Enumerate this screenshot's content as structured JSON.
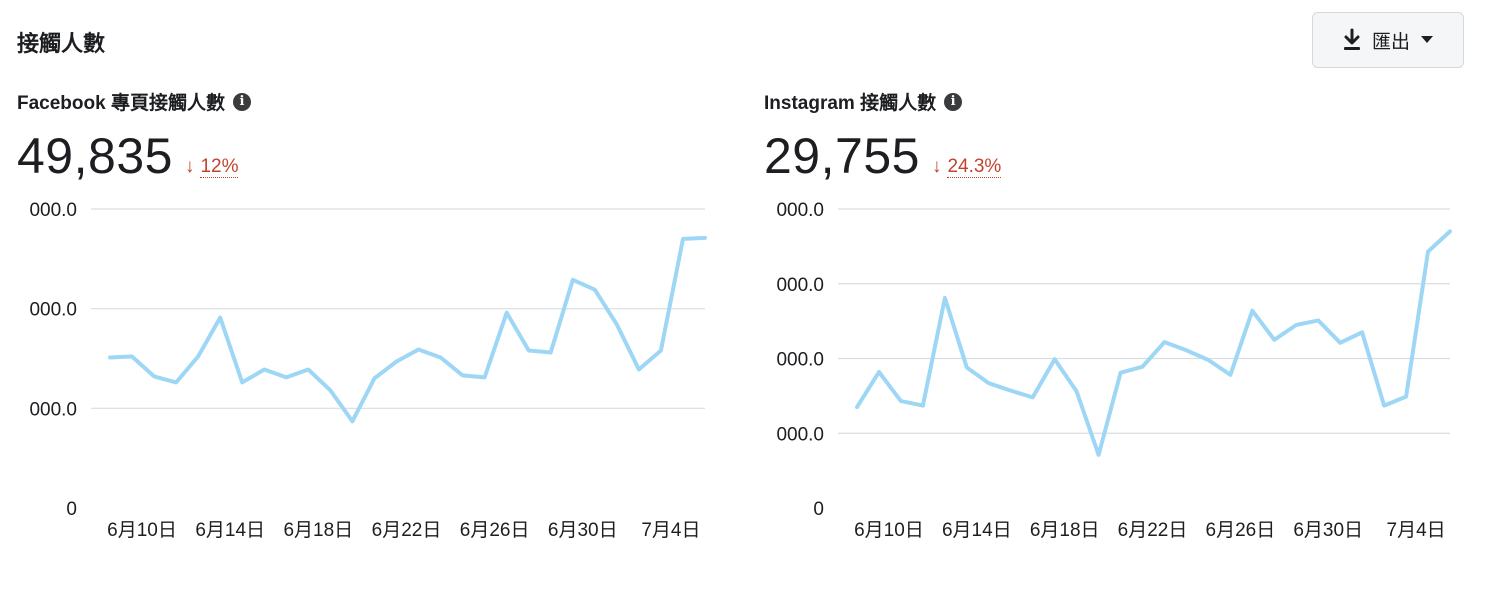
{
  "header": {
    "title": "接觸人數"
  },
  "export": {
    "label": "匯出",
    "icon": "download-icon",
    "caret_icon": "caret-down-icon"
  },
  "colors": {
    "line": "#9ed6f5",
    "negative": "#c1432e",
    "grid": "#dadde1"
  },
  "panels": [
    {
      "title": "Facebook 專頁接觸人數",
      "info_icon": "info-icon",
      "value": "49,835",
      "delta_arrow": "↓",
      "delta": "12%",
      "trend": "down"
    },
    {
      "title": "Instagram 接觸人數",
      "info_icon": "info-icon",
      "value": "29,755",
      "delta_arrow": "↓",
      "delta": "24.3%",
      "trend": "down"
    }
  ],
  "chart_data": [
    {
      "type": "line",
      "y_tick_labels": [
        "0",
        "000.0",
        "000.0",
        "000.0"
      ],
      "y_ticks": [
        0,
        1,
        2,
        3
      ],
      "ylim": [
        0,
        3
      ],
      "x_tick_labels": [
        "6月10日",
        "6月14日",
        "6月18日",
        "6月22日",
        "6月26日",
        "6月30日",
        "7月4日"
      ],
      "x_tick_index": [
        1,
        5,
        9,
        13,
        17,
        21,
        25
      ],
      "grid": true,
      "series": [
        {
          "values": [
            1.51,
            1.52,
            1.32,
            1.26,
            1.52,
            1.91,
            1.26,
            1.39,
            1.31,
            1.39,
            1.18,
            0.87,
            1.3,
            1.47,
            1.59,
            1.51,
            1.33,
            1.31,
            1.96,
            1.58,
            1.56,
            2.29,
            2.19,
            1.84,
            1.39,
            1.58,
            2.7,
            2.71
          ]
        }
      ]
    },
    {
      "type": "line",
      "y_tick_labels": [
        "0",
        "000.0",
        "000.0",
        "000.0",
        "000.0"
      ],
      "y_ticks": [
        0,
        1,
        2,
        3,
        4
      ],
      "ylim": [
        0,
        4
      ],
      "x_tick_labels": [
        "6月10日",
        "6月14日",
        "6月18日",
        "6月22日",
        "6月26日",
        "6月30日",
        "7月4日"
      ],
      "x_tick_index": [
        1,
        5,
        9,
        13,
        17,
        21,
        25
      ],
      "grid": true,
      "series": [
        {
          "values": [
            1.35,
            1.82,
            1.43,
            1.37,
            2.81,
            1.88,
            1.67,
            1.57,
            1.48,
            1.99,
            1.56,
            0.71,
            1.81,
            1.89,
            2.22,
            2.11,
            1.98,
            1.78,
            2.64,
            2.25,
            2.45,
            2.51,
            2.21,
            2.35,
            1.37,
            1.49,
            3.43,
            3.7
          ]
        }
      ]
    }
  ]
}
